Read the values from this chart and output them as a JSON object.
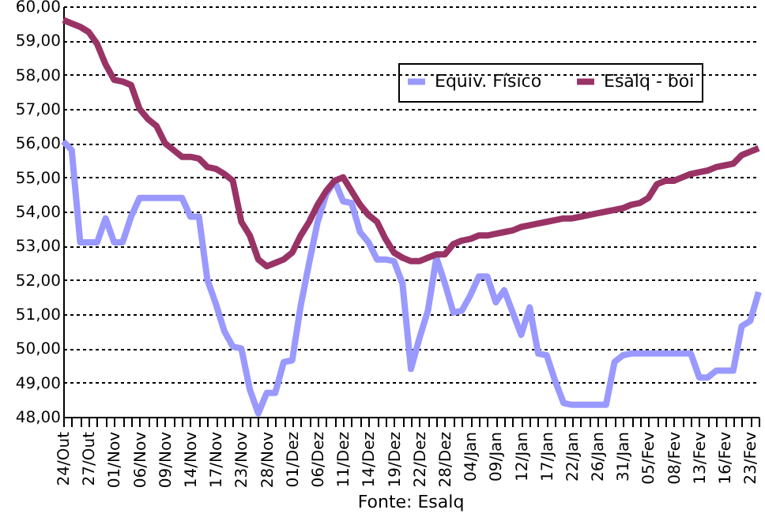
{
  "chart_data": {
    "type": "line",
    "categories": [
      "24/Out",
      null,
      null,
      "27/Out",
      null,
      null,
      "01/Nov",
      null,
      null,
      "06/Nov",
      null,
      null,
      "09/Nov",
      null,
      null,
      "14/Nov",
      null,
      null,
      "17/Nov",
      null,
      null,
      "23/Nov",
      null,
      null,
      "28/Nov",
      null,
      null,
      "01/Dez",
      null,
      null,
      "06/Dez",
      null,
      null,
      "11/Dez",
      null,
      null,
      "14/Dez",
      null,
      null,
      "19/Dez",
      null,
      null,
      "22/Dez",
      null,
      null,
      "28/Dez",
      null,
      null,
      "04/Jan",
      null,
      null,
      "09/Jan",
      null,
      null,
      "12/Jan",
      null,
      null,
      "17/Jan",
      null,
      null,
      "22/Jan",
      null,
      null,
      "26/Jan",
      null,
      null,
      "31/Jan",
      null,
      null,
      "05/Fev",
      null,
      null,
      "08/Fev",
      null,
      null,
      "13/Fev",
      null,
      null,
      "16/Fev",
      null,
      null,
      "23/Fev",
      null
    ],
    "series": [
      {
        "name": "Equiv. Físico",
        "color": "#9999ff",
        "values": [
          56.05,
          55.8,
          53.1,
          53.1,
          53.1,
          53.8,
          53.1,
          53.1,
          53.85,
          54.4,
          54.4,
          54.4,
          54.4,
          54.4,
          54.4,
          53.85,
          53.85,
          52.0,
          51.3,
          50.5,
          50.05,
          50.0,
          48.8,
          48.1,
          48.7,
          48.7,
          49.6,
          49.65,
          51.25,
          52.5,
          53.7,
          54.5,
          54.9,
          54.3,
          54.25,
          53.4,
          53.1,
          52.6,
          52.6,
          52.55,
          51.9,
          49.4,
          50.3,
          51.1,
          52.65,
          51.9,
          51.05,
          51.1,
          51.55,
          52.1,
          52.1,
          51.35,
          51.7,
          51.05,
          50.4,
          51.2,
          49.85,
          49.8,
          49.05,
          48.4,
          48.35,
          48.35,
          48.35,
          48.35,
          48.35,
          49.6,
          49.8,
          49.85,
          49.85,
          49.85,
          49.85,
          49.85,
          49.85,
          49.85,
          49.85,
          49.15,
          49.15,
          49.35,
          49.35,
          49.35,
          50.65,
          50.8,
          51.65
        ]
      },
      {
        "name": "Esalq - boi",
        "color": "#993366",
        "values": [
          59.6,
          59.5,
          59.4,
          59.25,
          58.9,
          58.3,
          57.85,
          57.8,
          57.7,
          57.0,
          56.7,
          56.5,
          56.0,
          55.8,
          55.6,
          55.6,
          55.55,
          55.3,
          55.25,
          55.1,
          54.9,
          53.7,
          53.3,
          52.6,
          52.4,
          52.5,
          52.6,
          52.8,
          53.3,
          53.7,
          54.2,
          54.6,
          54.9,
          55.0,
          54.6,
          54.2,
          53.9,
          53.7,
          53.2,
          52.8,
          52.65,
          52.55,
          52.55,
          52.65,
          52.75,
          52.75,
          53.05,
          53.15,
          53.2,
          53.3,
          53.3,
          53.35,
          53.4,
          53.45,
          53.55,
          53.6,
          53.65,
          53.7,
          53.75,
          53.8,
          53.8,
          53.85,
          53.9,
          53.95,
          54.0,
          54.05,
          54.1,
          54.2,
          54.25,
          54.4,
          54.8,
          54.9,
          54.9,
          55.0,
          55.1,
          55.15,
          55.2,
          55.3,
          55.35,
          55.4,
          55.65,
          55.75,
          55.85
        ]
      }
    ],
    "ylim": [
      48,
      60
    ],
    "yticks": [
      {
        "value": 48,
        "label": "48,00"
      },
      {
        "value": 49,
        "label": "49,00"
      },
      {
        "value": 50,
        "label": "50,00"
      },
      {
        "value": 51,
        "label": "51,00"
      },
      {
        "value": 52,
        "label": "52,00"
      },
      {
        "value": 53,
        "label": "53,00"
      },
      {
        "value": 54,
        "label": "54,00"
      },
      {
        "value": 55,
        "label": "55,00"
      },
      {
        "value": 56,
        "label": "56,00"
      },
      {
        "value": 57,
        "label": "57,00"
      },
      {
        "value": 58,
        "label": "58,00"
      },
      {
        "value": 59,
        "label": "59,00"
      },
      {
        "value": 60,
        "label": "60,00"
      }
    ],
    "grid": "y",
    "legend": "top right",
    "line_style": "solid",
    "marker": "none",
    "annotations": [
      "Fonte: Esalq"
    ]
  }
}
